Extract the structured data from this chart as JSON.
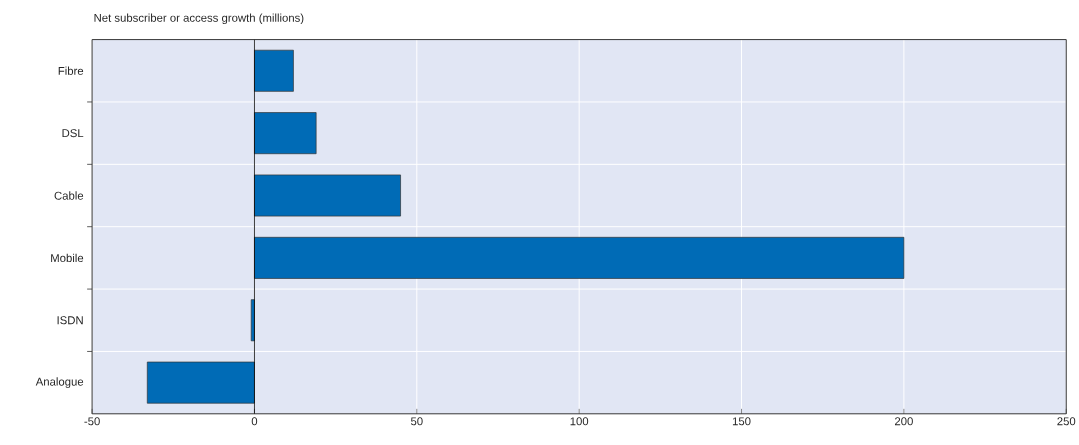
{
  "chart_data": {
    "type": "bar",
    "orientation": "horizontal",
    "title": "Net subscriber or access growth (millions)",
    "categories": [
      "Fibre",
      "DSL",
      "Cable",
      "Mobile",
      "ISDN",
      "Analogue"
    ],
    "values": [
      12,
      19,
      45,
      200,
      -1,
      -33
    ],
    "color": "#006bb6",
    "xlim": [
      -50,
      250
    ],
    "xticks": [
      -50,
      0,
      50,
      100,
      150,
      200,
      250
    ],
    "grid": true
  }
}
